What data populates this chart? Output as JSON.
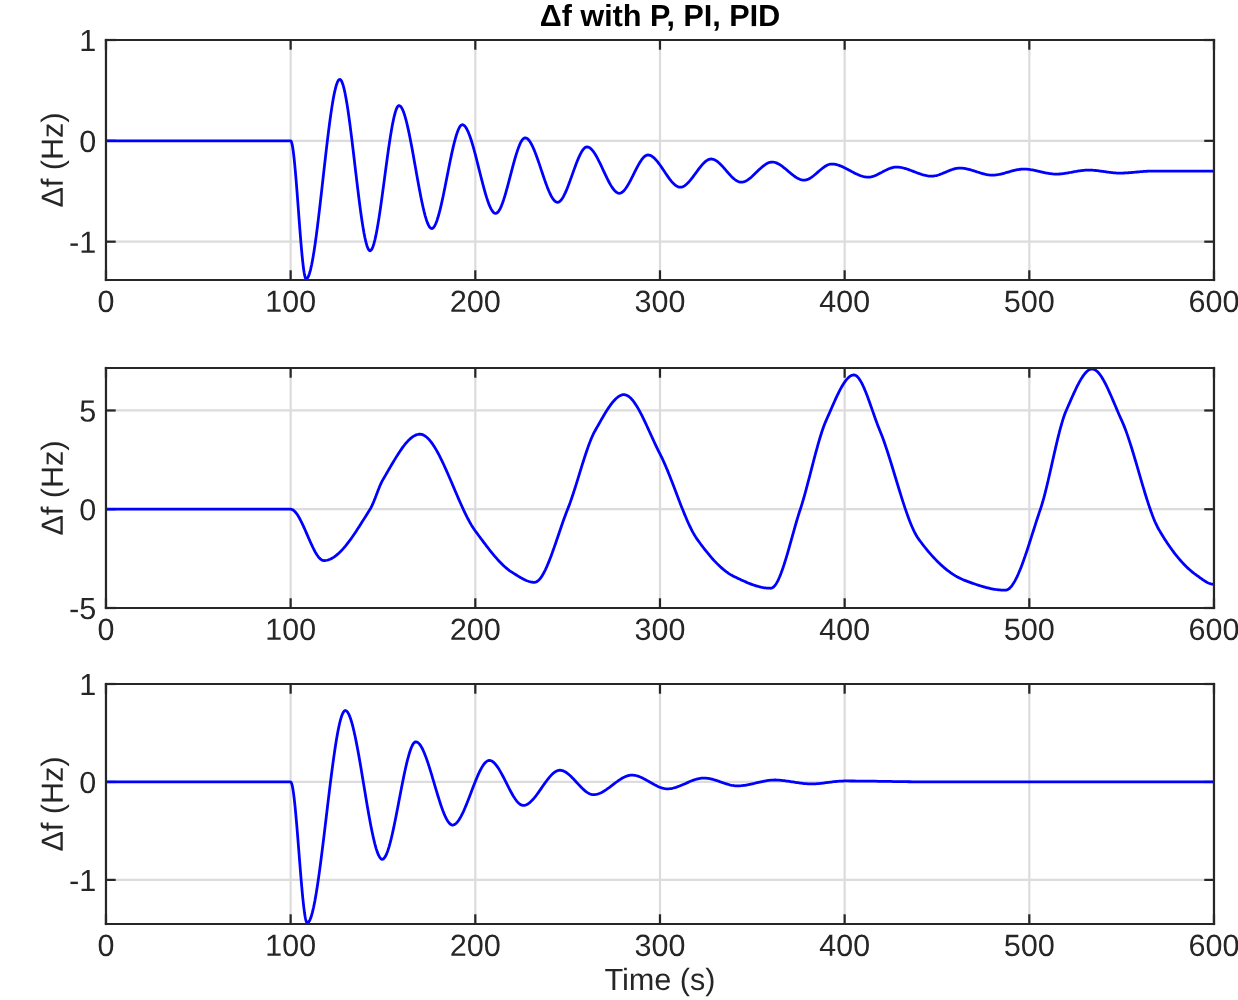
{
  "chart_data": [
    {
      "type": "line",
      "title": "Δf with P, PI, PID",
      "ylabel": "Δf (Hz)",
      "xlim": [
        0,
        600
      ],
      "xticks": [
        0,
        100,
        200,
        300,
        400,
        500,
        600
      ],
      "ylim": [
        -1.38,
        1
      ],
      "yticks": [
        -1,
        0,
        1
      ],
      "grid": true,
      "legend": false,
      "line_style": "solid",
      "series": [
        {
          "color": "#0000ff",
          "x": [
            0,
            100,
            108.4,
            126.6,
            143,
            158.7,
            176.4,
            193,
            211,
            227,
            244.5,
            260.5,
            278,
            293.5,
            311,
            327.7,
            344,
            360.7,
            378,
            393,
            412.7,
            428,
            447,
            462.5,
            480,
            497,
            514.6,
            532,
            549,
            566.6,
            600
          ],
          "values": [
            0,
            0,
            -1.37,
            0.61,
            -1.09,
            0.35,
            -0.87,
            0.16,
            -0.72,
            0.03,
            -0.61,
            -0.06,
            -0.52,
            -0.14,
            -0.46,
            -0.18,
            -0.41,
            -0.21,
            -0.39,
            -0.23,
            -0.36,
            -0.26,
            -0.35,
            -0.27,
            -0.34,
            -0.28,
            -0.33,
            -0.29,
            -0.32,
            -0.3,
            -0.3
          ]
        }
      ]
    },
    {
      "type": "line",
      "ylabel": "Δf (Hz)",
      "xlim": [
        0,
        600
      ],
      "xticks": [
        0,
        100,
        200,
        300,
        400,
        500,
        600
      ],
      "ylim": [
        -5,
        7.15
      ],
      "yticks": [
        -5,
        0,
        5
      ],
      "grid": true,
      "legend": false,
      "line_style": "solid",
      "series": [
        {
          "color": "#0000ff",
          "x": [
            0,
            100,
            118,
            143,
            150,
            170,
            200,
            220,
            232,
            250,
            265,
            280.5,
            300,
            320,
            340,
            360,
            376,
            390,
            405,
            419,
            440,
            465,
            487,
            506,
            520,
            534,
            550,
            570,
            590,
            600
          ],
          "values": [
            0,
            0,
            -2.6,
            0,
            1.5,
            3.8,
            -1.1,
            -3.2,
            -3.7,
            0,
            4.0,
            5.8,
            2.8,
            -1.5,
            -3.4,
            -4.0,
            0,
            4.5,
            6.8,
            4.0,
            -1.5,
            -3.6,
            -4.1,
            0,
            5.0,
            7.1,
            4.5,
            -1.0,
            -3.3,
            -3.8
          ]
        }
      ]
    },
    {
      "type": "line",
      "xlabel": "Time (s)",
      "ylabel": "Δf (Hz)",
      "xlim": [
        0,
        600
      ],
      "xticks": [
        0,
        100,
        200,
        300,
        400,
        500,
        600
      ],
      "ylim": [
        -1.45,
        1
      ],
      "yticks": [
        -1,
        0,
        1
      ],
      "grid": true,
      "legend": false,
      "line_style": "solid",
      "series": [
        {
          "color": "#0000ff",
          "x": [
            0,
            100,
            109,
            129.6,
            149.6,
            167.8,
            187.7,
            207.6,
            226,
            245.8,
            264,
            284.8,
            304,
            323.8,
            342,
            362,
            382,
            400,
            450,
            600
          ],
          "values": [
            0,
            0,
            -1.44,
            0.73,
            -0.79,
            0.41,
            -0.44,
            0.22,
            -0.24,
            0.12,
            -0.13,
            0.07,
            -0.07,
            0.04,
            -0.04,
            0.02,
            -0.02,
            0.01,
            0,
            0
          ]
        }
      ]
    }
  ]
}
